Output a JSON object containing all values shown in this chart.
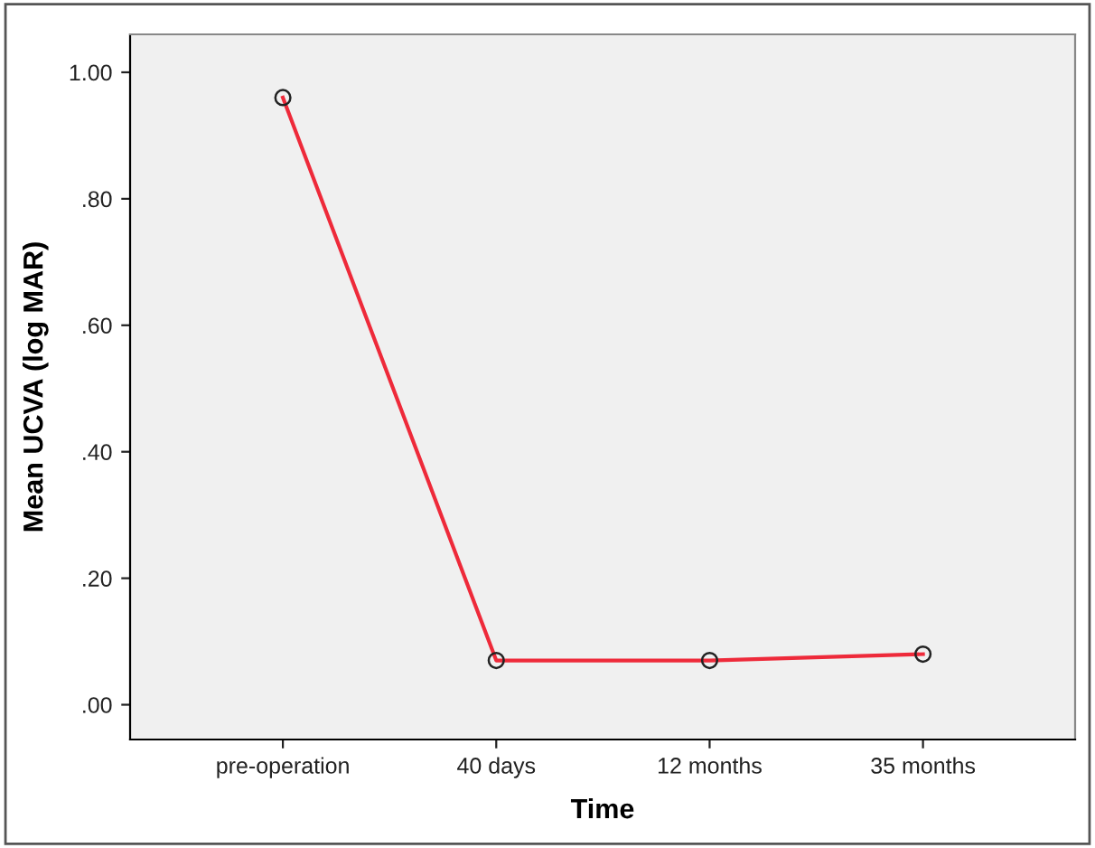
{
  "chart_data": {
    "type": "line",
    "xlabel": "Time",
    "ylabel": "Mean UCVA (log MAR)",
    "categories": [
      "pre-operation",
      "40 days",
      "12 months",
      "35 months"
    ],
    "series": [
      {
        "color": "#ee2a3a",
        "values": [
          0.96,
          0.07,
          0.07,
          0.08
        ]
      }
    ],
    "ylim": [
      -0.055,
      1.06
    ],
    "yticks": [
      {
        "value": 0,
        "label": ".00"
      },
      {
        "value": 0.2,
        "label": ".20"
      },
      {
        "value": 0.4,
        "label": ".40"
      },
      {
        "value": 0.6,
        "label": ".60"
      },
      {
        "value": 0.8,
        "label": ".80"
      },
      {
        "value": 1.0,
        "label": "1.00"
      }
    ],
    "marker": "circle",
    "line_style": "solid",
    "grid": false,
    "legend": false
  }
}
